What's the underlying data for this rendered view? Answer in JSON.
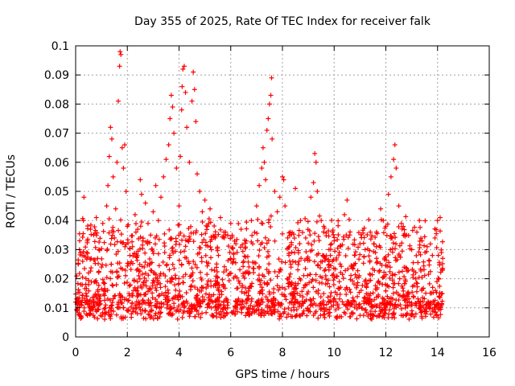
{
  "chart_data": {
    "type": "scatter",
    "title": "Day 355 of 2025, Rate Of TEC Index for receiver falk",
    "xlabel": "GPS time / hours",
    "ylabel": "ROTI / TECUs",
    "xlim": [
      0,
      16
    ],
    "ylim": [
      0,
      0.1
    ],
    "xticks": [
      "0",
      "2",
      "4",
      "6",
      "8",
      "10",
      "12",
      "14",
      "16"
    ],
    "yticks": [
      "0",
      "0.01",
      "0.02",
      "0.03",
      "0.04",
      "0.05",
      "0.06",
      "0.07",
      "0.08",
      "0.09",
      "0.1"
    ],
    "grid": true,
    "marker": "plus",
    "color": "#ff0000",
    "points": [
      [
        0.05,
        0.012
      ],
      [
        0.1,
        0.025
      ],
      [
        0.15,
        0.03
      ],
      [
        0.2,
        0.018
      ],
      [
        0.25,
        0.028
      ],
      [
        0.3,
        0.04
      ],
      [
        0.32,
        0.048
      ],
      [
        0.4,
        0.015
      ],
      [
        0.45,
        0.033
      ],
      [
        0.5,
        0.022
      ],
      [
        0.55,
        0.01
      ],
      [
        0.6,
        0.027
      ],
      [
        0.7,
        0.035
      ],
      [
        0.75,
        0.019
      ],
      [
        0.8,
        0.041
      ],
      [
        0.85,
        0.013
      ],
      [
        0.9,
        0.03
      ],
      [
        1.0,
        0.024
      ],
      [
        1.05,
        0.039
      ],
      [
        1.1,
        0.016
      ],
      [
        1.2,
        0.045
      ],
      [
        1.25,
        0.052
      ],
      [
        1.3,
        0.062
      ],
      [
        1.35,
        0.072
      ],
      [
        1.4,
        0.068
      ],
      [
        1.45,
        0.055
      ],
      [
        1.5,
        0.034
      ],
      [
        1.55,
        0.044
      ],
      [
        1.6,
        0.06
      ],
      [
        1.65,
        0.081
      ],
      [
        1.7,
        0.093
      ],
      [
        1.72,
        0.098
      ],
      [
        1.75,
        0.097
      ],
      [
        1.8,
        0.065
      ],
      [
        1.85,
        0.058
      ],
      [
        1.9,
        0.066
      ],
      [
        1.95,
        0.05
      ],
      [
        2.0,
        0.038
      ],
      [
        2.1,
        0.028
      ],
      [
        2.2,
        0.031
      ],
      [
        2.3,
        0.042
      ],
      [
        2.4,
        0.037
      ],
      [
        2.5,
        0.054
      ],
      [
        2.55,
        0.049
      ],
      [
        2.6,
        0.033
      ],
      [
        2.7,
        0.046
      ],
      [
        2.8,
        0.039
      ],
      [
        2.9,
        0.035
      ],
      [
        3.0,
        0.043
      ],
      [
        3.1,
        0.052
      ],
      [
        3.2,
        0.04
      ],
      [
        3.3,
        0.048
      ],
      [
        3.4,
        0.055
      ],
      [
        3.5,
        0.061
      ],
      [
        3.6,
        0.066
      ],
      [
        3.65,
        0.075
      ],
      [
        3.7,
        0.083
      ],
      [
        3.75,
        0.079
      ],
      [
        3.8,
        0.07
      ],
      [
        3.9,
        0.058
      ],
      [
        4.0,
        0.045
      ],
      [
        4.05,
        0.062
      ],
      [
        4.1,
        0.078
      ],
      [
        4.12,
        0.086
      ],
      [
        4.15,
        0.092
      ],
      [
        4.2,
        0.093
      ],
      [
        4.25,
        0.084
      ],
      [
        4.3,
        0.072
      ],
      [
        4.4,
        0.06
      ],
      [
        4.5,
        0.081
      ],
      [
        4.55,
        0.091
      ],
      [
        4.6,
        0.085
      ],
      [
        4.65,
        0.074
      ],
      [
        4.7,
        0.056
      ],
      [
        4.8,
        0.05
      ],
      [
        4.9,
        0.043
      ],
      [
        5.0,
        0.047
      ],
      [
        5.1,
        0.038
      ],
      [
        5.2,
        0.044
      ],
      [
        5.4,
        0.034
      ],
      [
        5.6,
        0.041
      ],
      [
        5.8,
        0.036
      ],
      [
        6.0,
        0.039
      ],
      [
        6.2,
        0.032
      ],
      [
        6.4,
        0.037
      ],
      [
        6.6,
        0.033
      ],
      [
        6.8,
        0.04
      ],
      [
        7.0,
        0.045
      ],
      [
        7.1,
        0.052
      ],
      [
        7.2,
        0.058
      ],
      [
        7.25,
        0.065
      ],
      [
        7.3,
        0.06
      ],
      [
        7.35,
        0.054
      ],
      [
        7.4,
        0.071
      ],
      [
        7.45,
        0.075
      ],
      [
        7.5,
        0.08
      ],
      [
        7.55,
        0.083
      ],
      [
        7.58,
        0.089
      ],
      [
        7.6,
        0.068
      ],
      [
        7.7,
        0.05
      ],
      [
        7.8,
        0.043
      ],
      [
        7.9,
        0.048
      ],
      [
        8.0,
        0.055
      ],
      [
        8.05,
        0.054
      ],
      [
        8.1,
        0.045
      ],
      [
        8.3,
        0.036
      ],
      [
        8.5,
        0.051
      ],
      [
        8.7,
        0.04
      ],
      [
        8.9,
        0.034
      ],
      [
        9.1,
        0.048
      ],
      [
        9.2,
        0.053
      ],
      [
        9.25,
        0.063
      ],
      [
        9.3,
        0.06
      ],
      [
        9.35,
        0.05
      ],
      [
        9.5,
        0.04
      ],
      [
        9.6,
        0.038
      ],
      [
        9.8,
        0.03
      ],
      [
        10.0,
        0.033
      ],
      [
        10.2,
        0.029
      ],
      [
        10.4,
        0.042
      ],
      [
        10.5,
        0.047
      ],
      [
        10.6,
        0.035
      ],
      [
        10.8,
        0.028
      ],
      [
        11.0,
        0.032
      ],
      [
        11.2,
        0.03
      ],
      [
        11.4,
        0.036
      ],
      [
        11.6,
        0.029
      ],
      [
        11.8,
        0.044
      ],
      [
        11.9,
        0.04
      ],
      [
        12.0,
        0.038
      ],
      [
        12.1,
        0.049
      ],
      [
        12.2,
        0.055
      ],
      [
        12.3,
        0.061
      ],
      [
        12.35,
        0.066
      ],
      [
        12.4,
        0.058
      ],
      [
        12.5,
        0.045
      ],
      [
        12.6,
        0.039
      ],
      [
        12.8,
        0.035
      ],
      [
        13.0,
        0.03
      ],
      [
        13.2,
        0.036
      ],
      [
        13.3,
        0.04
      ],
      [
        13.4,
        0.033
      ],
      [
        13.6,
        0.031
      ],
      [
        13.8,
        0.028
      ],
      [
        13.9,
        0.034
      ],
      [
        14.0,
        0.04
      ],
      [
        14.1,
        0.041
      ],
      [
        14.15,
        0.029
      ],
      [
        14.2,
        0.027
      ]
    ]
  }
}
